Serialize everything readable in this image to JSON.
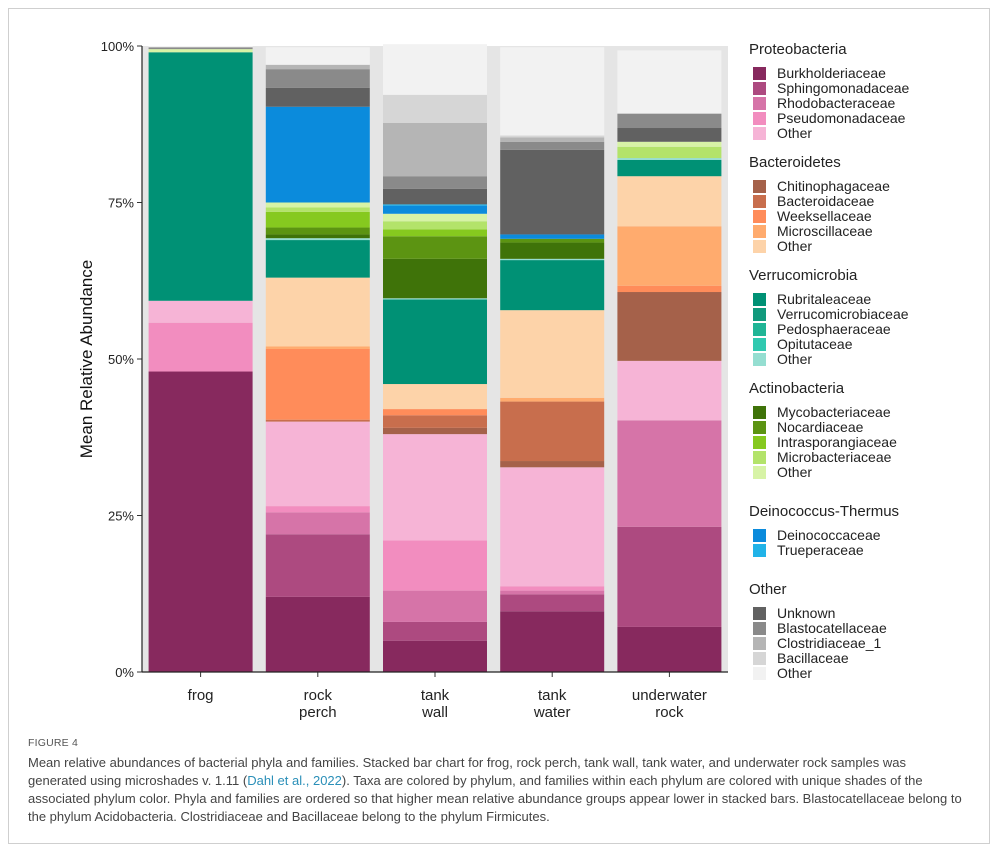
{
  "chart_data": {
    "type": "bar",
    "stacked": true,
    "ylabel": "Mean Relative Abundance",
    "xlabel": "",
    "ylim": [
      0,
      100
    ],
    "y_ticks": [
      "0%",
      "25%",
      "50%",
      "75%",
      "100%"
    ],
    "y_tick_values": [
      0,
      25,
      50,
      75,
      100
    ],
    "categories": [
      {
        "lines": [
          "frog"
        ]
      },
      {
        "lines": [
          "rock",
          "perch"
        ]
      },
      {
        "lines": [
          "tank",
          "wall"
        ]
      },
      {
        "lines": [
          "tank",
          "water"
        ]
      },
      {
        "lines": [
          "underwater",
          "rock"
        ]
      }
    ],
    "colors": {
      "Burkholderiaceae": "#87295e",
      "Sphingomonadaceae": "#ad4a80",
      "Rhodobacteraceae": "#d674a8",
      "Pseudomonadaceae": "#f28dbf",
      "Proteobacteria Other": "#f6b4d6",
      "Chitinophagaceae": "#a5614a",
      "Bacteroidaceae": "#c86e4d",
      "Weeksellaceae": "#ff8c5a",
      "Microscillaceae": "#ffab6e",
      "Bacteroidetes Other": "#fdd3a9",
      "Rubritaleaceae": "#009175",
      "Verrucomicrobiaceae": "#119a7d",
      "Pedosphaeraceae": "#20b596",
      "Opitutaceae": "#30c9b0",
      "Verrucomicrobia Other": "#95ded1",
      "Mycobacteriaceae": "#3f7309",
      "Nocardiaceae": "#5c9412",
      "Intrasporangiaceae": "#86c91f",
      "Microbacteriaceae": "#b3e36a",
      "Actinobacteria Other": "#d7f3a6",
      "Deinococcaceae": "#0b8bdc",
      "Trueperaceae": "#21b3e8",
      "Unknown": "#616161",
      "Blastocatellaceae": "#8a8a8a",
      "Clostridiaceae_1": "#b5b5b5",
      "Bacillaceae": "#d6d6d6",
      "Other": "#f2f2f2"
    },
    "series": [
      {
        "name": "Burkholderiaceae",
        "values": [
          48,
          12,
          5,
          9.7,
          7.2
        ]
      },
      {
        "name": "Sphingomonadaceae",
        "values": [
          0,
          10,
          3,
          2.7,
          16
        ]
      },
      {
        "name": "Rhodobacteraceae",
        "values": [
          0,
          3.5,
          5,
          0.6,
          17
        ]
      },
      {
        "name": "Pseudomonadaceae",
        "values": [
          7.8,
          1,
          8,
          0.7,
          0
        ]
      },
      {
        "name": "Proteobacteria Other",
        "values": [
          3.5,
          13.5,
          17,
          19,
          9.5
        ]
      },
      {
        "name": "Chitinophagaceae",
        "values": [
          0,
          0,
          1,
          1,
          11
        ]
      },
      {
        "name": "Bacteroidaceae",
        "values": [
          0,
          0.3,
          2,
          9.5,
          0
        ]
      },
      {
        "name": "Weeksellaceae",
        "values": [
          0,
          11.3,
          1,
          0,
          1
        ]
      },
      {
        "name": "Microscillaceae",
        "values": [
          0,
          0.4,
          0,
          0.6,
          9.5
        ]
      },
      {
        "name": "Bacteroidetes Other",
        "values": [
          0,
          11,
          4,
          14,
          8
        ]
      },
      {
        "name": "Rubritaleaceae",
        "values": [
          39.7,
          6,
          13.5,
          8,
          2.6
        ]
      },
      {
        "name": "Verrucomicrobiaceae",
        "values": [
          0,
          0,
          0,
          0,
          0
        ]
      },
      {
        "name": "Pedosphaeraceae",
        "values": [
          0,
          0,
          0,
          0,
          0
        ]
      },
      {
        "name": "Opitutaceae",
        "values": [
          0,
          0,
          0,
          0,
          0
        ]
      },
      {
        "name": "Verrucomicrobia Other",
        "values": [
          0,
          0.3,
          0.2,
          0.2,
          0.3
        ]
      },
      {
        "name": "Mycobacteriaceae",
        "values": [
          0,
          0.6,
          6.3,
          2.6,
          0
        ]
      },
      {
        "name": "Nocardiaceae",
        "values": [
          0,
          1.1,
          3.6,
          0.6,
          0
        ]
      },
      {
        "name": "Intrasporangiaceae",
        "values": [
          0,
          2.5,
          1.1,
          0,
          0
        ]
      },
      {
        "name": "Microbacteriaceae",
        "values": [
          0,
          0.7,
          1.3,
          0,
          1.8
        ]
      },
      {
        "name": "Actinobacteria Other",
        "values": [
          0.5,
          0.8,
          1.2,
          0,
          0.8
        ]
      },
      {
        "name": "Deinococcaceae",
        "values": [
          0,
          15.3,
          1.3,
          0.7,
          0
        ]
      },
      {
        "name": "Trueperaceae",
        "values": [
          0,
          0,
          0.2,
          0,
          0
        ]
      },
      {
        "name": "Unknown",
        "values": [
          0,
          3,
          2.5,
          13.5,
          2.2
        ]
      },
      {
        "name": "Blastocatellaceae",
        "values": [
          0.3,
          3,
          2,
          1.3,
          2.3
        ]
      },
      {
        "name": "Clostridiaceae_1",
        "values": [
          0,
          0.7,
          8.5,
          0.7,
          0
        ]
      },
      {
        "name": "Bacillaceae",
        "values": [
          0,
          0,
          4.5,
          0.3,
          0
        ]
      },
      {
        "name": "Other",
        "values": [
          0.2,
          2.8,
          8.1,
          14.1,
          10.1
        ]
      }
    ]
  },
  "legend": {
    "groups": [
      {
        "title": "Proteobacteria",
        "items": [
          {
            "label": "Burkholderiaceae",
            "key": "Burkholderiaceae"
          },
          {
            "label": "Sphingomonadaceae",
            "key": "Sphingomonadaceae"
          },
          {
            "label": "Rhodobacteraceae",
            "key": "Rhodobacteraceae"
          },
          {
            "label": "Pseudomonadaceae",
            "key": "Pseudomonadaceae"
          },
          {
            "label": "Other",
            "key": "Proteobacteria Other"
          }
        ]
      },
      {
        "title": "Bacteroidetes",
        "items": [
          {
            "label": "Chitinophagaceae",
            "key": "Chitinophagaceae"
          },
          {
            "label": "Bacteroidaceae",
            "key": "Bacteroidaceae"
          },
          {
            "label": "Weeksellaceae",
            "key": "Weeksellaceae"
          },
          {
            "label": "Microscillaceae",
            "key": "Microscillaceae"
          },
          {
            "label": "Other",
            "key": "Bacteroidetes Other"
          }
        ]
      },
      {
        "title": "Verrucomicrobia",
        "items": [
          {
            "label": "Rubritaleaceae",
            "key": "Rubritaleaceae"
          },
          {
            "label": "Verrucomicrobiaceae",
            "key": "Verrucomicrobiaceae"
          },
          {
            "label": "Pedosphaeraceae",
            "key": "Pedosphaeraceae"
          },
          {
            "label": "Opitutaceae",
            "key": "Opitutaceae"
          },
          {
            "label": "Other",
            "key": "Verrucomicrobia Other"
          }
        ]
      },
      {
        "title": "Actinobacteria",
        "items": [
          {
            "label": "Mycobacteriaceae",
            "key": "Mycobacteriaceae"
          },
          {
            "label": "Nocardiaceae",
            "key": "Nocardiaceae"
          },
          {
            "label": "Intrasporangiaceae",
            "key": "Intrasporangiaceae"
          },
          {
            "label": "Microbacteriaceae",
            "key": "Microbacteriaceae"
          },
          {
            "label": "Other",
            "key": "Actinobacteria Other"
          }
        ]
      },
      {
        "title": "Deinococcus-Thermus",
        "items": [
          {
            "label": "Deinococcaceae",
            "key": "Deinococcaceae"
          },
          {
            "label": "Trueperaceae",
            "key": "Trueperaceae"
          }
        ]
      },
      {
        "title": "Other",
        "items": [
          {
            "label": "Unknown",
            "key": "Unknown"
          },
          {
            "label": "Blastocatellaceae",
            "key": "Blastocatellaceae"
          },
          {
            "label": "Clostridiaceae_1",
            "key": "Clostridiaceae_1"
          },
          {
            "label": "Bacillaceae",
            "key": "Bacillaceae"
          },
          {
            "label": "Other",
            "key": "Other"
          }
        ]
      }
    ]
  },
  "caption": {
    "label": "FIGURE 4",
    "text_before": "Mean relative abundances of bacterial phyla and families. Stacked bar chart for frog, rock perch, tank wall, tank water, and underwater rock samples was generated using microshades v. 1.11 (",
    "citation": "Dahl et al., 2022",
    "text_after": "). Taxa are colored by phylum, and families within each phylum are colored with unique shades of the associated phylum color. Phyla and families are ordered so that higher mean relative abundance groups appear lower in stacked bars. Blastocatellaceae belong to the phylum Acidobacteria. Clostridiaceae and Bacillaceae belong to the phylum Firmicutes."
  }
}
